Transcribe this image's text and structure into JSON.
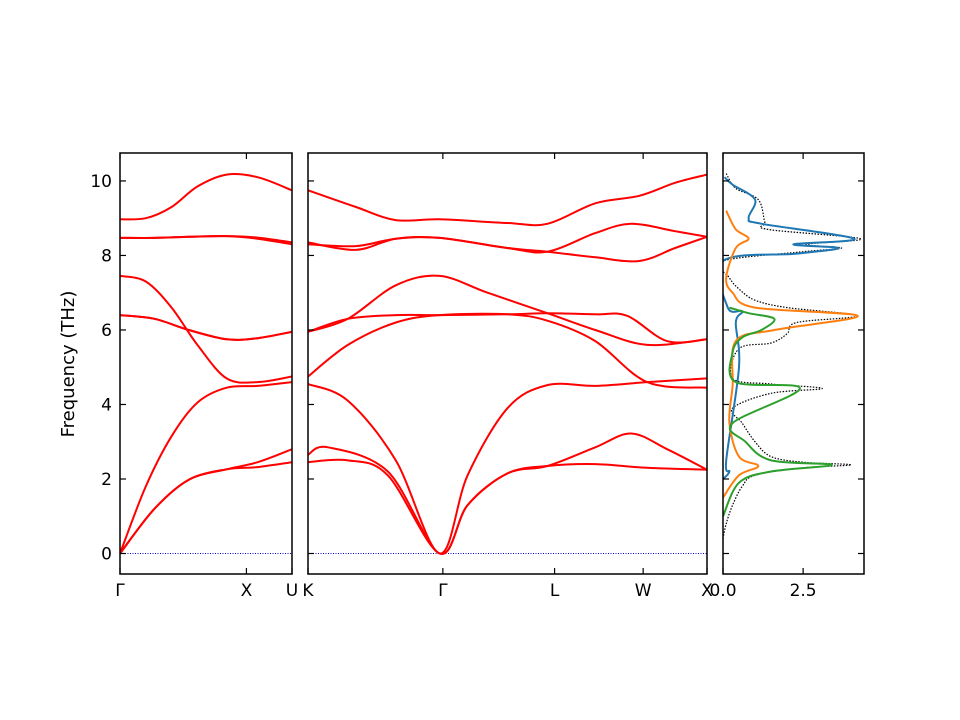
{
  "chart_data": {
    "type": "line",
    "ylabel": "Frequency (THz)",
    "ylim": [
      -0.55,
      10.75
    ],
    "y_ticks": [
      "0",
      "2",
      "4",
      "6",
      "8",
      "10"
    ],
    "band_color": "#ff0000",
    "zero_line_color": "#0000cc",
    "panels": [
      {
        "id": "gamma-x-u",
        "x_ticks": [
          "Γ",
          "X",
          "U"
        ],
        "series": [
          {
            "values": [
              [
                0,
                0
              ],
              [
                0.2,
                1.2
              ],
              [
                0.4,
                1.98
              ],
              [
                0.62,
                2.26
              ],
              [
                0.8,
                2.45
              ],
              [
                1,
                2.8
              ]
            ]
          },
          {
            "values": [
              [
                0,
                0
              ],
              [
                0.2,
                1.2
              ],
              [
                0.4,
                1.98
              ],
              [
                0.62,
                2.26
              ],
              [
                0.8,
                2.32
              ],
              [
                1,
                2.45
              ]
            ]
          },
          {
            "values": [
              [
                0,
                0
              ],
              [
                0.15,
                1.8
              ],
              [
                0.3,
                3.15
              ],
              [
                0.45,
                4.05
              ],
              [
                0.62,
                4.45
              ],
              [
                0.8,
                4.5
              ],
              [
                1,
                4.6
              ]
            ]
          },
          {
            "values": [
              [
                0,
                6.4
              ],
              [
                0.2,
                6.3
              ],
              [
                0.4,
                6.0
              ],
              [
                0.62,
                5.75
              ],
              [
                0.8,
                5.78
              ],
              [
                1,
                5.95
              ]
            ]
          },
          {
            "values": [
              [
                0,
                7.45
              ],
              [
                0.15,
                7.3
              ],
              [
                0.3,
                6.6
              ],
              [
                0.45,
                5.6
              ],
              [
                0.62,
                4.7
              ],
              [
                0.8,
                4.6
              ],
              [
                1,
                4.75
              ]
            ]
          },
          {
            "values": [
              [
                0,
                6.4
              ],
              [
                0.2,
                6.3
              ],
              [
                0.4,
                6.0
              ],
              [
                0.62,
                5.75
              ],
              [
                0.8,
                5.78
              ],
              [
                1,
                5.95
              ]
            ]
          },
          {
            "values": [
              [
                0,
                8.47
              ],
              [
                0.2,
                8.47
              ],
              [
                0.4,
                8.5
              ],
              [
                0.62,
                8.52
              ],
              [
                0.8,
                8.48
              ],
              [
                1,
                8.35
              ]
            ]
          },
          {
            "values": [
              [
                0,
                8.47
              ],
              [
                0.2,
                8.47
              ],
              [
                0.4,
                8.5
              ],
              [
                0.62,
                8.52
              ],
              [
                0.8,
                8.45
              ],
              [
                1,
                8.3
              ]
            ]
          },
          {
            "values": [
              [
                0,
                8.97
              ],
              [
                0.15,
                9.0
              ],
              [
                0.3,
                9.3
              ],
              [
                0.45,
                9.85
              ],
              [
                0.62,
                10.17
              ],
              [
                0.8,
                10.1
              ],
              [
                1,
                9.75
              ]
            ]
          }
        ]
      },
      {
        "id": "k-gamma-l-w-x",
        "x_ticks": [
          "K",
          "Γ",
          "L",
          "W",
          "X"
        ],
        "series": [
          {
            "values": [
              [
                0,
                2.45
              ],
              [
                0.1,
                2.5
              ],
              [
                0.2,
                2.1
              ],
              [
                0.33,
                0
              ],
              [
                0.4,
                1.3
              ],
              [
                0.5,
                2.15
              ],
              [
                0.6,
                2.35
              ],
              [
                0.72,
                2.4
              ],
              [
                0.85,
                2.3
              ],
              [
                1,
                2.25
              ]
            ]
          },
          {
            "values": [
              [
                0,
                2.65
              ],
              [
                0.05,
                2.85
              ],
              [
                0.2,
                2.2
              ],
              [
                0.33,
                0
              ],
              [
                0.4,
                1.3
              ],
              [
                0.5,
                2.15
              ],
              [
                0.6,
                2.35
              ],
              [
                0.72,
                2.85
              ],
              [
                0.81,
                3.22
              ],
              [
                0.9,
                2.8
              ],
              [
                1,
                2.25
              ]
            ]
          },
          {
            "values": [
              [
                0,
                4.55
              ],
              [
                0.1,
                4.1
              ],
              [
                0.22,
                2.5
              ],
              [
                0.33,
                0
              ],
              [
                0.4,
                2.1
              ],
              [
                0.5,
                3.9
              ],
              [
                0.6,
                4.52
              ],
              [
                0.72,
                4.5
              ],
              [
                0.85,
                4.6
              ],
              [
                1,
                4.7
              ]
            ]
          },
          {
            "values": [
              [
                0,
                4.75
              ],
              [
                0.1,
                5.6
              ],
              [
                0.22,
                6.2
              ],
              [
                0.33,
                6.4
              ],
              [
                0.5,
                6.42
              ],
              [
                0.6,
                6.25
              ],
              [
                0.72,
                5.7
              ],
              [
                0.85,
                4.6
              ],
              [
                1,
                4.45
              ]
            ]
          },
          {
            "values": [
              [
                0,
                5.95
              ],
              [
                0.1,
                6.3
              ],
              [
                0.22,
                6.4
              ],
              [
                0.33,
                6.4
              ],
              [
                0.5,
                6.42
              ],
              [
                0.6,
                6.45
              ],
              [
                0.72,
                6.42
              ],
              [
                0.8,
                6.38
              ],
              [
                0.9,
                5.7
              ],
              [
                1,
                5.75
              ]
            ]
          },
          {
            "values": [
              [
                0,
                5.95
              ],
              [
                0.1,
                6.3
              ],
              [
                0.22,
                7.2
              ],
              [
                0.33,
                7.45
              ],
              [
                0.45,
                7.0
              ],
              [
                0.6,
                6.45
              ],
              [
                0.72,
                6.0
              ],
              [
                0.85,
                5.6
              ],
              [
                1,
                5.75
              ]
            ]
          },
          {
            "values": [
              [
                0,
                8.35
              ],
              [
                0.12,
                8.15
              ],
              [
                0.22,
                8.45
              ],
              [
                0.33,
                8.47
              ],
              [
                0.5,
                8.2
              ],
              [
                0.6,
                8.1
              ],
              [
                0.72,
                7.95
              ],
              [
                0.83,
                7.85
              ],
              [
                0.92,
                8.2
              ],
              [
                1,
                8.5
              ]
            ]
          },
          {
            "values": [
              [
                0,
                8.3
              ],
              [
                0.12,
                8.25
              ],
              [
                0.22,
                8.45
              ],
              [
                0.33,
                8.47
              ],
              [
                0.5,
                8.2
              ],
              [
                0.6,
                8.1
              ],
              [
                0.72,
                8.6
              ],
              [
                0.81,
                8.85
              ],
              [
                0.92,
                8.65
              ],
              [
                1,
                8.5
              ]
            ]
          },
          {
            "values": [
              [
                0,
                9.75
              ],
              [
                0.12,
                9.3
              ],
              [
                0.22,
                8.95
              ],
              [
                0.33,
                8.97
              ],
              [
                0.5,
                8.87
              ],
              [
                0.6,
                8.85
              ],
              [
                0.72,
                9.4
              ],
              [
                0.83,
                9.6
              ],
              [
                0.92,
                9.95
              ],
              [
                1,
                10.17
              ]
            ]
          }
        ]
      },
      {
        "id": "dos",
        "x_ticks": [
          "0.0",
          "2.5"
        ],
        "xlim": [
          0,
          4.4
        ],
        "series": [
          {
            "color": "#000000",
            "style": "dotted",
            "values": [
              [
                0.0,
                0.4
              ],
              [
                0.1,
                0.8
              ],
              [
                0.3,
                1.3
              ],
              [
                0.6,
                1.8
              ],
              [
                1.0,
                2.1
              ],
              [
                2.5,
                2.3
              ],
              [
                4.0,
                2.38
              ],
              [
                2.5,
                2.45
              ],
              [
                1.5,
                2.6
              ],
              [
                1.0,
                3.0
              ],
              [
                0.6,
                3.5
              ],
              [
                0.3,
                3.9
              ],
              [
                1.5,
                4.3
              ],
              [
                3.1,
                4.43
              ],
              [
                1.5,
                4.55
              ],
              [
                0.3,
                4.7
              ],
              [
                0.5,
                5.5
              ],
              [
                1.5,
                5.65
              ],
              [
                2.0,
                5.9
              ],
              [
                2.3,
                6.2
              ],
              [
                4.2,
                6.38
              ],
              [
                2.0,
                6.6
              ],
              [
                1.0,
                6.8
              ],
              [
                0.5,
                7.1
              ],
              [
                0.2,
                7.4
              ],
              [
                0.0,
                7.85
              ],
              [
                2.5,
                8.1
              ],
              [
                3.7,
                8.2
              ],
              [
                2.6,
                8.3
              ],
              [
                4.3,
                8.45
              ],
              [
                1.4,
                8.7
              ],
              [
                1.3,
                8.9
              ],
              [
                1.1,
                9.5
              ],
              [
                0.4,
                9.8
              ],
              [
                0.1,
                10.2
              ]
            ]
          },
          {
            "color": "#1f77b4",
            "style": "solid",
            "values": [
              [
                0.0,
                2.0
              ],
              [
                0.2,
                2.2
              ],
              [
                0.1,
                2.5
              ],
              [
                0.5,
                5.0
              ],
              [
                0.4,
                6.2
              ],
              [
                0.6,
                6.5
              ],
              [
                0.15,
                6.6
              ],
              [
                0.0,
                7.85
              ],
              [
                2.3,
                8.05
              ],
              [
                3.6,
                8.2
              ],
              [
                2.2,
                8.3
              ],
              [
                4.1,
                8.45
              ],
              [
                1.2,
                8.85
              ],
              [
                0.8,
                9.0
              ],
              [
                1.0,
                9.5
              ],
              [
                0.3,
                9.9
              ],
              [
                0.05,
                10.1
              ]
            ]
          },
          {
            "color": "#ff7f0e",
            "style": "solid",
            "values": [
              [
                0.0,
                1.5
              ],
              [
                0.5,
                2.1
              ],
              [
                1.1,
                2.35
              ],
              [
                0.5,
                2.6
              ],
              [
                0.2,
                3.5
              ],
              [
                0.3,
                4.5
              ],
              [
                0.4,
                5.7
              ],
              [
                1.6,
                6.0
              ],
              [
                4.2,
                6.38
              ],
              [
                1.0,
                6.6
              ],
              [
                0.3,
                7.0
              ],
              [
                0.1,
                7.4
              ],
              [
                0.4,
                8.2
              ],
              [
                0.8,
                8.45
              ],
              [
                0.4,
                8.7
              ],
              [
                0.1,
                9.2
              ]
            ]
          },
          {
            "color": "#2ca02c",
            "style": "solid",
            "values": [
              [
                0.0,
                1.0
              ],
              [
                0.5,
                1.9
              ],
              [
                1.5,
                2.2
              ],
              [
                3.4,
                2.38
              ],
              [
                1.5,
                2.5
              ],
              [
                0.7,
                3.0
              ],
              [
                0.3,
                3.5
              ],
              [
                2.4,
                4.43
              ],
              [
                0.4,
                4.6
              ],
              [
                0.3,
                5.4
              ],
              [
                0.6,
                5.8
              ],
              [
                1.2,
                6.0
              ],
              [
                1.6,
                6.3
              ],
              [
                0.8,
                6.45
              ],
              [
                0.2,
                6.6
              ]
            ]
          }
        ]
      }
    ]
  }
}
